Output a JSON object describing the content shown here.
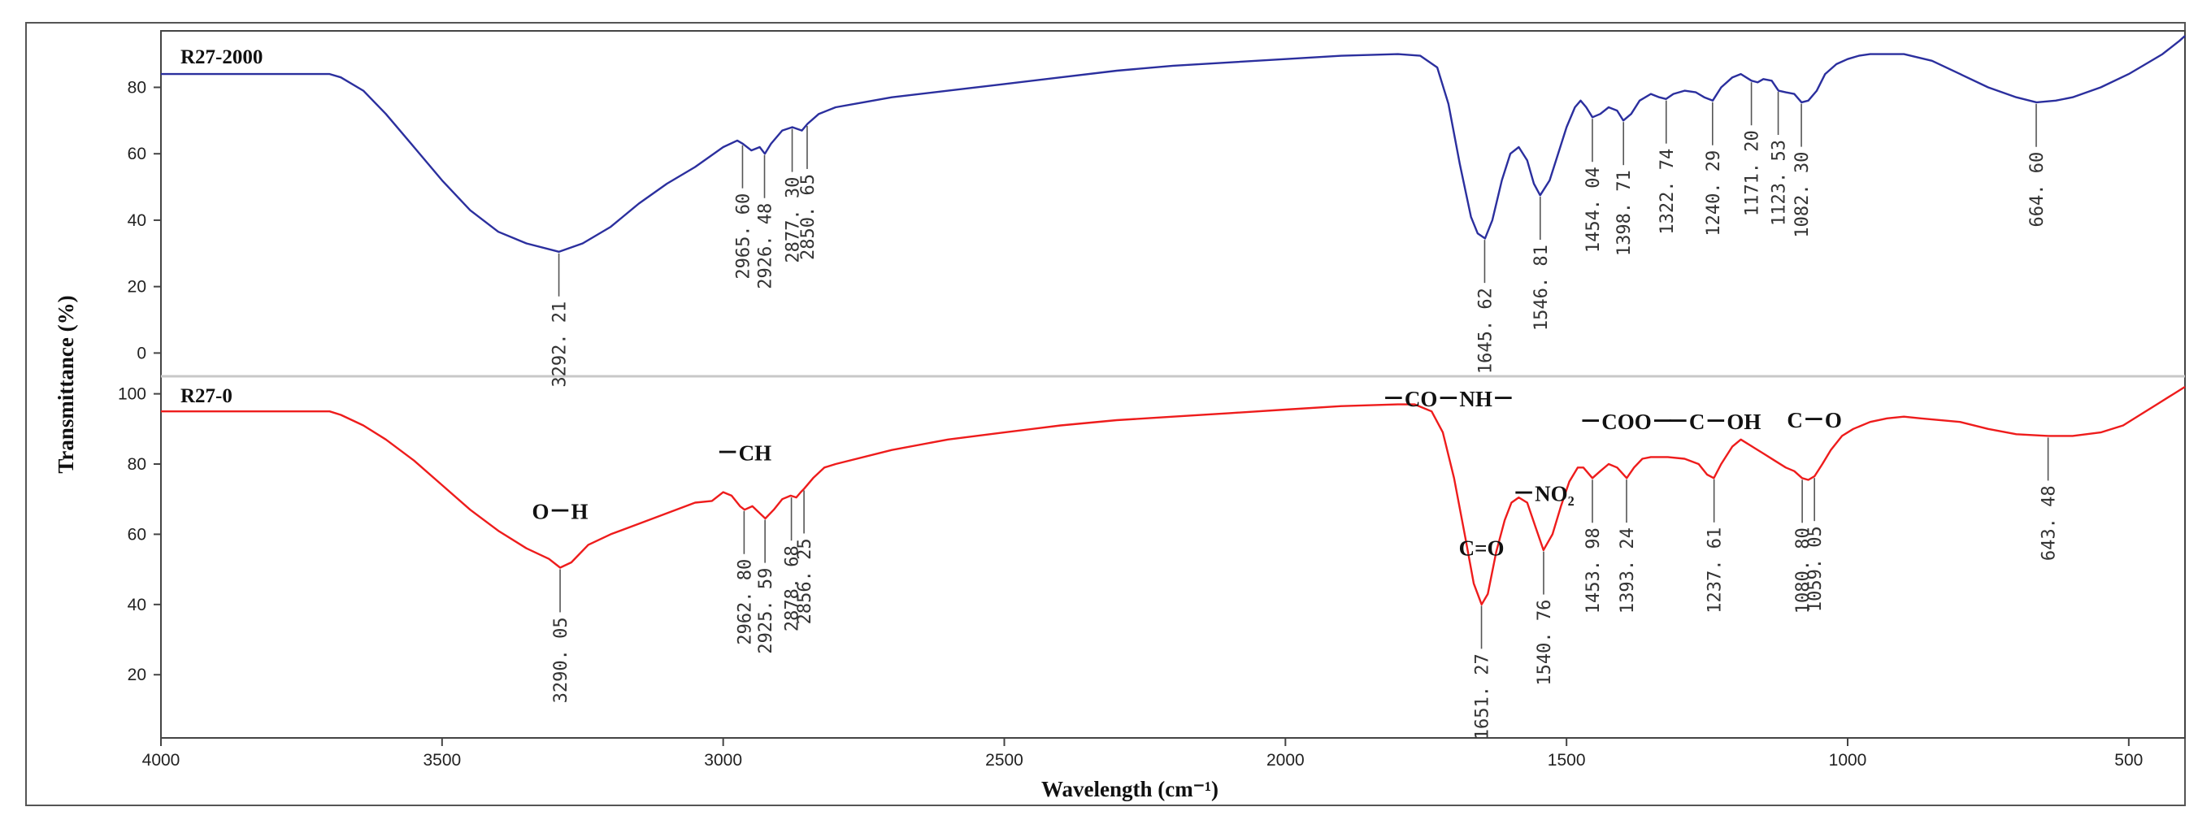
{
  "chart_data": {
    "type": "line",
    "title": "",
    "xlabel": "Wavelength (cm⁻¹)",
    "ylabel": "Transmittance (%)",
    "xlim": [
      4000,
      400
    ],
    "x_ticks": [
      4000,
      3500,
      3000,
      2500,
      2000,
      1500,
      1000,
      500
    ],
    "series": [
      {
        "name": "R27-2000",
        "color": "#2b2f9e",
        "ylim": [
          -7,
          97
        ],
        "y_ticks": [
          0,
          20,
          40,
          60,
          80
        ],
        "points": [
          [
            4000,
            84
          ],
          [
            3900,
            84
          ],
          [
            3800,
            84
          ],
          [
            3700,
            84
          ],
          [
            3680,
            83
          ],
          [
            3640,
            79
          ],
          [
            3600,
            72
          ],
          [
            3550,
            62
          ],
          [
            3500,
            52
          ],
          [
            3450,
            43
          ],
          [
            3400,
            36.5
          ],
          [
            3350,
            33
          ],
          [
            3292,
            30.5
          ],
          [
            3250,
            33
          ],
          [
            3200,
            38
          ],
          [
            3150,
            45
          ],
          [
            3100,
            51
          ],
          [
            3050,
            56
          ],
          [
            3000,
            62
          ],
          [
            2975,
            64
          ],
          [
            2965,
            63
          ],
          [
            2950,
            61
          ],
          [
            2935,
            62
          ],
          [
            2926,
            60
          ],
          [
            2915,
            63
          ],
          [
            2895,
            67
          ],
          [
            2877,
            68
          ],
          [
            2860,
            67
          ],
          [
            2850,
            69
          ],
          [
            2830,
            72
          ],
          [
            2800,
            74
          ],
          [
            2700,
            77
          ],
          [
            2600,
            79
          ],
          [
            2500,
            81
          ],
          [
            2400,
            83
          ],
          [
            2300,
            85
          ],
          [
            2200,
            86.5
          ],
          [
            2100,
            87.5
          ],
          [
            2000,
            88.5
          ],
          [
            1900,
            89.5
          ],
          [
            1800,
            90
          ],
          [
            1760,
            89.5
          ],
          [
            1730,
            86
          ],
          [
            1710,
            75
          ],
          [
            1690,
            57
          ],
          [
            1670,
            41
          ],
          [
            1658,
            36
          ],
          [
            1645,
            34.5
          ],
          [
            1632,
            40
          ],
          [
            1615,
            52
          ],
          [
            1600,
            60
          ],
          [
            1585,
            62
          ],
          [
            1570,
            58
          ],
          [
            1558,
            51
          ],
          [
            1547,
            47.5
          ],
          [
            1530,
            52
          ],
          [
            1515,
            60
          ],
          [
            1500,
            68
          ],
          [
            1485,
            74
          ],
          [
            1475,
            76
          ],
          [
            1465,
            74
          ],
          [
            1454,
            71
          ],
          [
            1440,
            72
          ],
          [
            1425,
            74
          ],
          [
            1410,
            73
          ],
          [
            1399,
            70
          ],
          [
            1385,
            72
          ],
          [
            1370,
            76
          ],
          [
            1350,
            78
          ],
          [
            1335,
            77
          ],
          [
            1323,
            76.5
          ],
          [
            1310,
            78
          ],
          [
            1290,
            79
          ],
          [
            1270,
            78.5
          ],
          [
            1255,
            77
          ],
          [
            1240,
            76
          ],
          [
            1225,
            80
          ],
          [
            1205,
            83
          ],
          [
            1190,
            84
          ],
          [
            1171,
            82
          ],
          [
            1160,
            81.5
          ],
          [
            1150,
            82.5
          ],
          [
            1135,
            82
          ],
          [
            1123,
            79
          ],
          [
            1110,
            78.5
          ],
          [
            1095,
            78
          ],
          [
            1082,
            75.5
          ],
          [
            1070,
            76
          ],
          [
            1055,
            79
          ],
          [
            1040,
            84
          ],
          [
            1020,
            87
          ],
          [
            1000,
            88.5
          ],
          [
            980,
            89.5
          ],
          [
            960,
            90
          ],
          [
            900,
            90
          ],
          [
            850,
            88
          ],
          [
            800,
            84
          ],
          [
            750,
            80
          ],
          [
            700,
            77
          ],
          [
            664,
            75.5
          ],
          [
            630,
            76
          ],
          [
            600,
            77
          ],
          [
            550,
            80
          ],
          [
            500,
            84
          ],
          [
            470,
            87
          ],
          [
            440,
            90
          ],
          [
            410,
            94
          ],
          [
            400,
            95.5
          ]
        ],
        "peaks": [
          {
            "x": 3292.21,
            "label": "3292. 21"
          },
          {
            "x": 2965.6,
            "label": "2965. 60"
          },
          {
            "x": 2926.48,
            "label": "2926. 48"
          },
          {
            "x": 2877.3,
            "label": "2877. 30"
          },
          {
            "x": 2850.65,
            "label": "2850. 65"
          },
          {
            "x": 1645.62,
            "label": "1645. 62"
          },
          {
            "x": 1546.81,
            "label": "1546. 81"
          },
          {
            "x": 1454.04,
            "label": "1454. 04"
          },
          {
            "x": 1398.71,
            "label": "1398. 71"
          },
          {
            "x": 1322.74,
            "label": "1322. 74"
          },
          {
            "x": 1240.29,
            "label": "1240. 29"
          },
          {
            "x": 1171.2,
            "label": "1171. 20"
          },
          {
            "x": 1123.53,
            "label": "1123. 53"
          },
          {
            "x": 1082.3,
            "label": "1082. 30"
          },
          {
            "x": 664.6,
            "label": "664. 60"
          }
        ]
      },
      {
        "name": "R27-0",
        "color": "#ee1c1c",
        "ylim": [
          2,
          105
        ],
        "y_ticks": [
          20,
          40,
          60,
          80,
          100
        ],
        "points": [
          [
            4000,
            95
          ],
          [
            3900,
            95
          ],
          [
            3800,
            95
          ],
          [
            3700,
            95
          ],
          [
            3680,
            94
          ],
          [
            3640,
            91
          ],
          [
            3600,
            87
          ],
          [
            3550,
            81
          ],
          [
            3500,
            74
          ],
          [
            3450,
            67
          ],
          [
            3400,
            61
          ],
          [
            3350,
            56
          ],
          [
            3310,
            53
          ],
          [
            3290,
            50.5
          ],
          [
            3270,
            52
          ],
          [
            3240,
            57
          ],
          [
            3200,
            60
          ],
          [
            3150,
            63
          ],
          [
            3100,
            66
          ],
          [
            3050,
            69
          ],
          [
            3020,
            69.5
          ],
          [
            3000,
            72
          ],
          [
            2985,
            71
          ],
          [
            2970,
            68
          ],
          [
            2962,
            67
          ],
          [
            2948,
            68
          ],
          [
            2935,
            66
          ],
          [
            2925,
            64.5
          ],
          [
            2910,
            67
          ],
          [
            2895,
            70
          ],
          [
            2880,
            71
          ],
          [
            2870,
            70.5
          ],
          [
            2862,
            72
          ],
          [
            2856,
            73
          ],
          [
            2840,
            76
          ],
          [
            2820,
            79
          ],
          [
            2800,
            80
          ],
          [
            2700,
            84
          ],
          [
            2600,
            87
          ],
          [
            2500,
            89
          ],
          [
            2400,
            91
          ],
          [
            2300,
            92.5
          ],
          [
            2200,
            93.5
          ],
          [
            2100,
            94.5
          ],
          [
            2000,
            95.5
          ],
          [
            1900,
            96.5
          ],
          [
            1800,
            97
          ],
          [
            1770,
            97
          ],
          [
            1740,
            95
          ],
          [
            1720,
            89
          ],
          [
            1700,
            76
          ],
          [
            1680,
            59
          ],
          [
            1665,
            46
          ],
          [
            1651,
            40
          ],
          [
            1640,
            43
          ],
          [
            1625,
            55
          ],
          [
            1610,
            64
          ],
          [
            1598,
            69
          ],
          [
            1585,
            70.5
          ],
          [
            1570,
            69
          ],
          [
            1555,
            62
          ],
          [
            1541,
            55.5
          ],
          [
            1525,
            60
          ],
          [
            1510,
            68
          ],
          [
            1495,
            75
          ],
          [
            1480,
            79
          ],
          [
            1470,
            79
          ],
          [
            1454,
            76
          ],
          [
            1440,
            78
          ],
          [
            1425,
            80
          ],
          [
            1410,
            79
          ],
          [
            1393,
            76
          ],
          [
            1380,
            79
          ],
          [
            1365,
            81.5
          ],
          [
            1350,
            82
          ],
          [
            1320,
            82
          ],
          [
            1290,
            81.5
          ],
          [
            1265,
            80
          ],
          [
            1250,
            77
          ],
          [
            1238,
            76
          ],
          [
            1225,
            80
          ],
          [
            1205,
            85
          ],
          [
            1190,
            87
          ],
          [
            1170,
            85
          ],
          [
            1150,
            83
          ],
          [
            1130,
            81
          ],
          [
            1110,
            79
          ],
          [
            1095,
            78
          ],
          [
            1081,
            76
          ],
          [
            1070,
            75.5
          ],
          [
            1059,
            76.5
          ],
          [
            1045,
            80
          ],
          [
            1030,
            84
          ],
          [
            1010,
            88
          ],
          [
            990,
            90
          ],
          [
            960,
            92
          ],
          [
            930,
            93
          ],
          [
            900,
            93.5
          ],
          [
            870,
            93
          ],
          [
            800,
            92
          ],
          [
            750,
            90
          ],
          [
            700,
            88.5
          ],
          [
            643,
            88
          ],
          [
            600,
            88
          ],
          [
            550,
            89
          ],
          [
            510,
            91
          ],
          [
            480,
            94
          ],
          [
            450,
            97
          ],
          [
            420,
            100
          ],
          [
            400,
            102
          ]
        ],
        "peaks": [
          {
            "x": 3290.05,
            "label": "3290. 05"
          },
          {
            "x": 2962.8,
            "label": "2962. 80"
          },
          {
            "x": 2925.59,
            "label": "2925. 59"
          },
          {
            "x": 2878.68,
            "label": "2878. 68"
          },
          {
            "x": 2856.25,
            "label": "2856. 25"
          },
          {
            "x": 1651.27,
            "label": "1651. 27"
          },
          {
            "x": 1540.76,
            "label": "1540. 76"
          },
          {
            "x": 1453.98,
            "label": "1453. 98"
          },
          {
            "x": 1393.24,
            "label": "1393. 24"
          },
          {
            "x": 1237.61,
            "label": "1237. 61"
          },
          {
            "x": 1080.8,
            "label": "1080. 80"
          },
          {
            "x": 1059.05,
            "label": "1059. 05"
          },
          {
            "x": 643.48,
            "label": "643. 48"
          }
        ],
        "group_annotations": [
          {
            "x": 3290.05,
            "label": "O－H"
          },
          {
            "x": 2962.8,
            "label": "－CH"
          },
          {
            "x": 1710,
            "label": "－CO－NH－"
          },
          {
            "x": 1651.27,
            "label": "C=O"
          },
          {
            "x": 1540.76,
            "label": "－NO₂"
          },
          {
            "x": 1393.24,
            "label": "－COO－"
          },
          {
            "x": 1237.61,
            "label": "－C－OH"
          },
          {
            "x": 1059.05,
            "label": "C－O"
          }
        ]
      }
    ],
    "grid": false,
    "legend": "panel labels top-left"
  }
}
